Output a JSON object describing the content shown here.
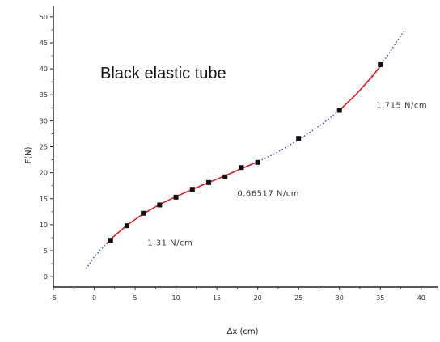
{
  "chart_data": {
    "type": "scatter",
    "title": "Black elastic tube",
    "xlabel": "Δx (cm)",
    "ylabel": "F(N)",
    "xlim": [
      -5,
      42
    ],
    "ylim": [
      -2,
      52
    ],
    "xticks": [
      -5,
      0,
      5,
      10,
      15,
      20,
      25,
      30,
      35,
      40
    ],
    "yticks": [
      0,
      5,
      10,
      15,
      20,
      25,
      30,
      35,
      40,
      45,
      50
    ],
    "grid": false,
    "series": [
      {
        "type": "scatter",
        "color": "#111111",
        "x": [
          2,
          4,
          6,
          8,
          10,
          12,
          14,
          16,
          18,
          20,
          25,
          30,
          35
        ],
        "y": [
          7,
          9.8,
          12.2,
          13.8,
          15.3,
          16.8,
          18.1,
          19.2,
          21.0,
          22.0,
          26.6,
          32.0,
          40.8
        ]
      },
      {
        "type": "line",
        "style": "dotted",
        "color": "#3a4fd8",
        "x": [
          -1,
          0,
          2,
          4,
          6,
          8,
          10,
          12,
          14,
          16,
          18,
          20,
          22,
          25,
          28,
          30,
          32,
          35,
          38
        ],
        "y": [
          1.5,
          3.8,
          7.2,
          9.9,
          12.1,
          13.9,
          15.4,
          16.8,
          18.1,
          19.4,
          20.8,
          22.1,
          23.6,
          26.3,
          29.5,
          32.0,
          35.0,
          40.5,
          47.5
        ]
      },
      {
        "type": "line",
        "style": "solid",
        "color": "#e02020",
        "x": [
          1.5,
          2,
          4,
          6,
          8
        ],
        "y": [
          6.3,
          7.2,
          9.9,
          12.1,
          13.9
        ]
      },
      {
        "type": "line",
        "style": "solid",
        "color": "#e02020",
        "x": [
          8,
          10,
          12,
          14,
          16,
          18,
          20
        ],
        "y": [
          13.9,
          15.4,
          16.8,
          18.1,
          19.4,
          20.8,
          22.1
        ]
      },
      {
        "type": "line",
        "style": "solid",
        "color": "#e02020",
        "x": [
          30,
          32,
          34,
          35
        ],
        "y": [
          32.0,
          35.0,
          38.5,
          40.5
        ]
      }
    ],
    "annotations": [
      {
        "text": "1,715 N/cm",
        "x": 34.5,
        "y": 32.5
      },
      {
        "text": "0,66517  N/cm",
        "x": 17.5,
        "y": 15.5
      },
      {
        "text": "1,31 N/cm",
        "x": 6.5,
        "y": 6.0
      }
    ]
  }
}
